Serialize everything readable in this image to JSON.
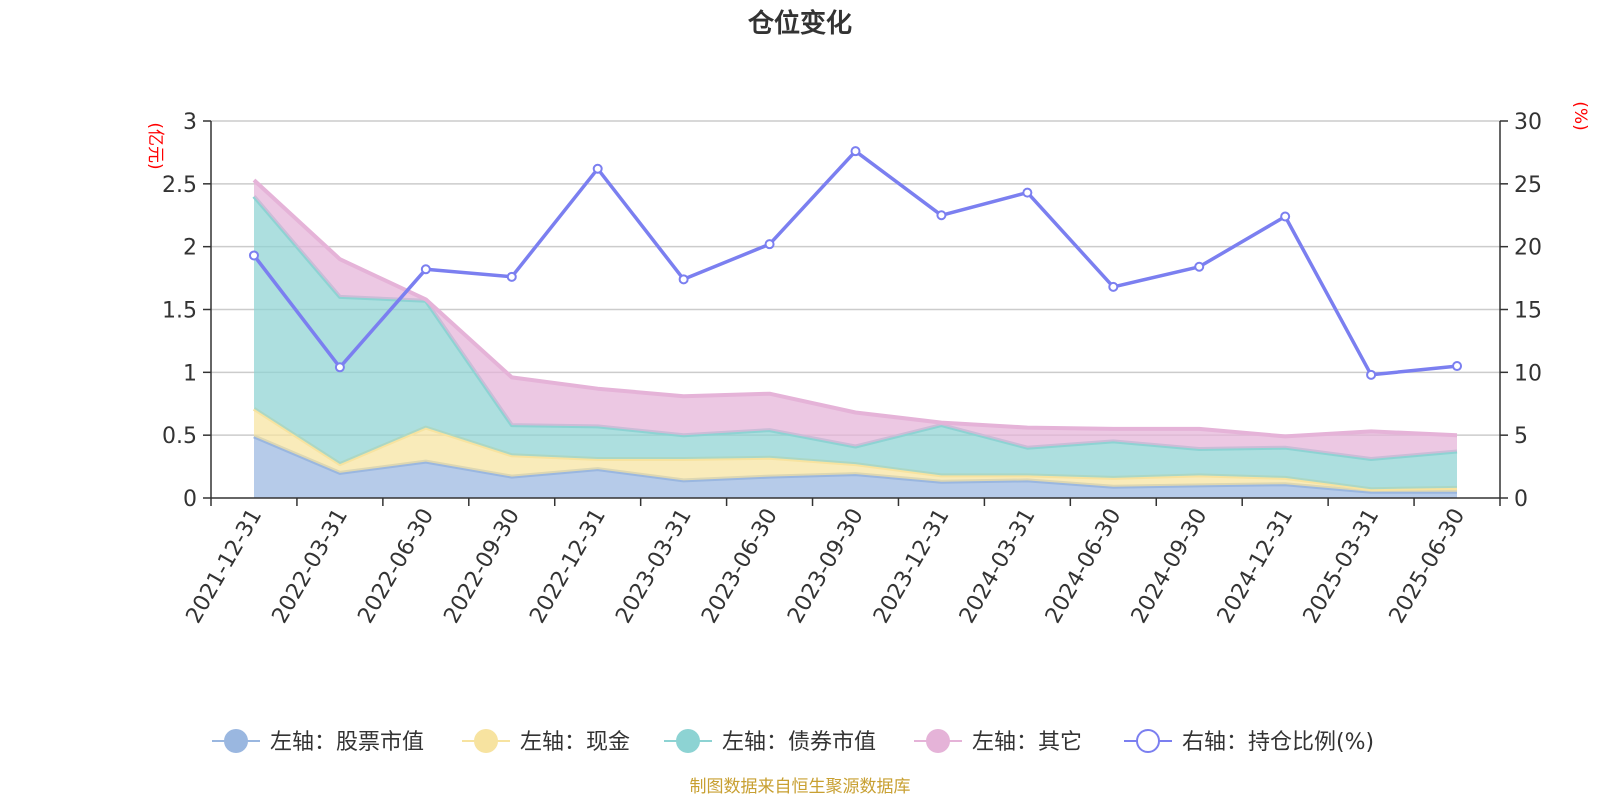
{
  "chart_data": {
    "type": "area",
    "title": "仓位变化",
    "left_axis": {
      "unit": "(亿元)",
      "ylim": [
        0,
        3
      ],
      "ticks": [
        "0",
        "0.5",
        "1",
        "1.5",
        "2",
        "2.5",
        "3"
      ]
    },
    "right_axis": {
      "unit": "(%)",
      "ylim": [
        0,
        30
      ],
      "ticks": [
        "0",
        "5",
        "10",
        "15",
        "20",
        "25",
        "30"
      ]
    },
    "categories": [
      "2021-12-31",
      "2022-03-31",
      "2022-06-30",
      "2022-09-30",
      "2022-12-31",
      "2023-03-31",
      "2023-06-30",
      "2023-09-30",
      "2023-12-31",
      "2024-03-31",
      "2024-06-30",
      "2024-09-30",
      "2024-12-31",
      "2025-03-31",
      "2025-06-30"
    ],
    "stacked_series": [
      {
        "name": "左轴：股票市值",
        "axis": "left",
        "color": "#9ab7e0",
        "values": [
          0.49,
          0.2,
          0.29,
          0.17,
          0.23,
          0.14,
          0.17,
          0.19,
          0.13,
          0.14,
          0.09,
          0.1,
          0.11,
          0.05,
          0.05
        ]
      },
      {
        "name": "左轴：现金",
        "axis": "left",
        "color": "#f7e3a0",
        "values": [
          0.22,
          0.07,
          0.27,
          0.17,
          0.08,
          0.17,
          0.15,
          0.08,
          0.05,
          0.04,
          0.07,
          0.08,
          0.05,
          0.02,
          0.03
        ]
      },
      {
        "name": "左轴：债券市值",
        "axis": "left",
        "color": "#8dd3d3",
        "values": [
          1.69,
          1.33,
          1.01,
          0.24,
          0.26,
          0.19,
          0.22,
          0.14,
          0.4,
          0.22,
          0.29,
          0.21,
          0.24,
          0.24,
          0.29
        ]
      },
      {
        "name": "左轴：其它",
        "axis": "left",
        "color": "#e5b3d8",
        "values": [
          0.13,
          0.3,
          0.01,
          0.38,
          0.3,
          0.31,
          0.29,
          0.27,
          0.02,
          0.16,
          0.1,
          0.16,
          0.09,
          0.22,
          0.13
        ]
      }
    ],
    "line_series": {
      "name": "右轴：持仓比例(%)",
      "axis": "right",
      "color": "#7b7ff0",
      "values": [
        19.3,
        10.4,
        18.2,
        17.6,
        26.2,
        17.4,
        20.2,
        27.6,
        22.5,
        24.3,
        16.8,
        18.4,
        22.4,
        9.8,
        10.5
      ]
    },
    "grid": true,
    "legend_position": "bottom"
  },
  "source_note": "制图数据来自恒生聚源数据库"
}
